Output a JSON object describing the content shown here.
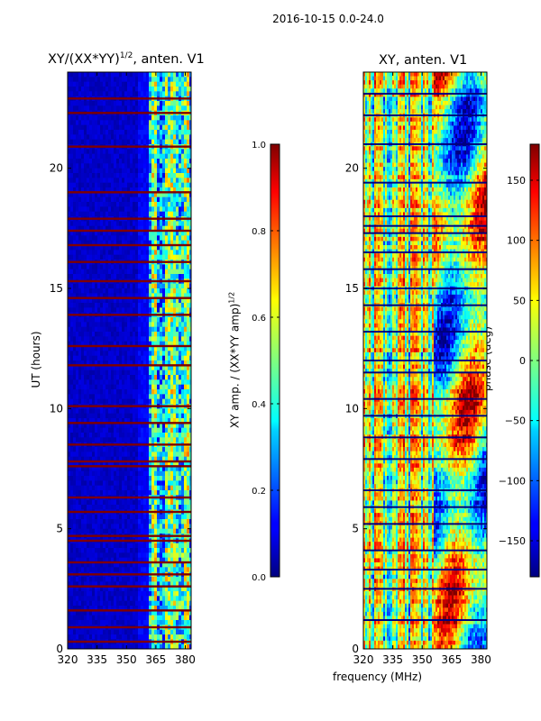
{
  "suptitle": "2016-10-15 0.0-24.0",
  "chart_data": [
    {
      "type": "heatmap",
      "title": "XY/(XX*YY)^{1/2}, anten. V1",
      "title_main": "XY/(XX*YY)",
      "title_sup": "1/2",
      "title_tail": ", anten. V1",
      "xlabel": "",
      "ylabel": "UT (hours)",
      "xlim": [
        320,
        383
      ],
      "ylim": [
        0,
        24
      ],
      "xticks": [
        "320",
        "335",
        "350",
        "365",
        "380"
      ],
      "yticks": [
        "0",
        "5",
        "10",
        "15",
        "20"
      ],
      "colormap": "jet",
      "colorbar": {
        "label": "XY amp. / (XX*YY amp)^{1/2}",
        "label_main": "XY amp. / (XX*YY amp)",
        "label_sup": "1/2",
        "range": [
          0.0,
          1.0
        ],
        "ticks": [
          "0.0",
          "0.2",
          "0.4",
          "0.6",
          "0.8",
          "1.0"
        ]
      },
      "flagged_rows_ut_hours": [
        0.3,
        0.9,
        1.6,
        2.6,
        3.1,
        3.6,
        4.5,
        4.7,
        5.7,
        6.3,
        7.6,
        7.8,
        8.5,
        9.4,
        10.1,
        11.8,
        12.6,
        13.9,
        14.6,
        15.3,
        16.1,
        16.8,
        17.4,
        17.9,
        19.0,
        20.9,
        22.3,
        22.9
      ],
      "notes": "Low amplitude (~0.0-0.1) below ~360 MHz; elevated amplitude (~0.2-0.7) for 360-383 MHz; flagged time rows saturate at 1.0"
    },
    {
      "type": "heatmap",
      "title": "XY, anten. V1",
      "xlabel": "frequency (MHz)",
      "ylabel": "",
      "xlim": [
        320,
        383
      ],
      "ylim": [
        0,
        24
      ],
      "xticks": [
        "320",
        "335",
        "350",
        "365",
        "380"
      ],
      "yticks": [
        "0",
        "5",
        "10",
        "15",
        "20"
      ],
      "colormap": "jet",
      "colorbar": {
        "label": "phase (deg)",
        "range": [
          -180,
          180
        ],
        "ticks": [
          "−150",
          "−100",
          "−50",
          "0",
          "50",
          "100",
          "150"
        ]
      },
      "flagged_rows_ut_hours": [
        1.2,
        2.5,
        3.3,
        4.1,
        5.2,
        5.9,
        6.6,
        7.9,
        8.8,
        9.7,
        10.4,
        11.5,
        12.0,
        13.2,
        14.3,
        15.0,
        15.8,
        16.5,
        17.3,
        17.6,
        18.0,
        19.4,
        21.0,
        22.2,
        23.1
      ],
      "notes": "Phase is vertically striped across frequency with large-scale structures (red/blue) above ~355 MHz"
    }
  ]
}
